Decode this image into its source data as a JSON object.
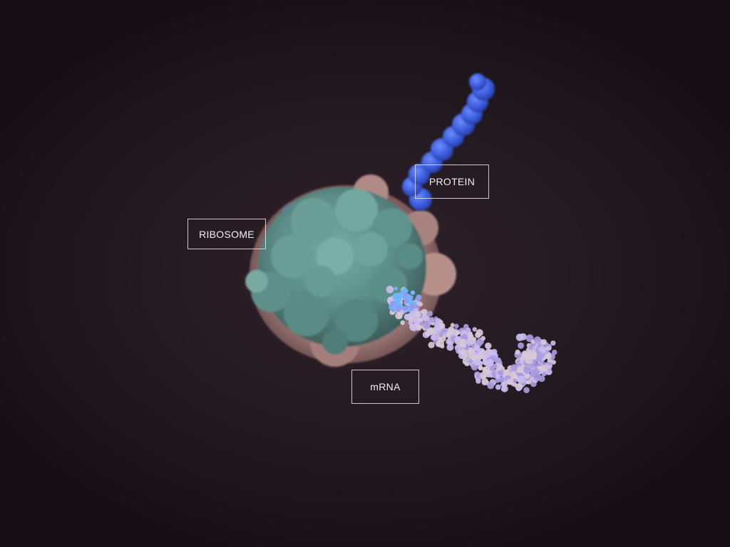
{
  "labels": {
    "ribosome": "RIBOSOME",
    "protein": "PROTEIN",
    "mrna": "mRNA"
  },
  "colors": {
    "background": "#1f161d",
    "ribosome": "#5d8f8a",
    "ribosome_rim": "#b78984",
    "protein": "#3d5fe0",
    "mrna": "#b9abe6",
    "label_border": "#ebe4eb"
  }
}
